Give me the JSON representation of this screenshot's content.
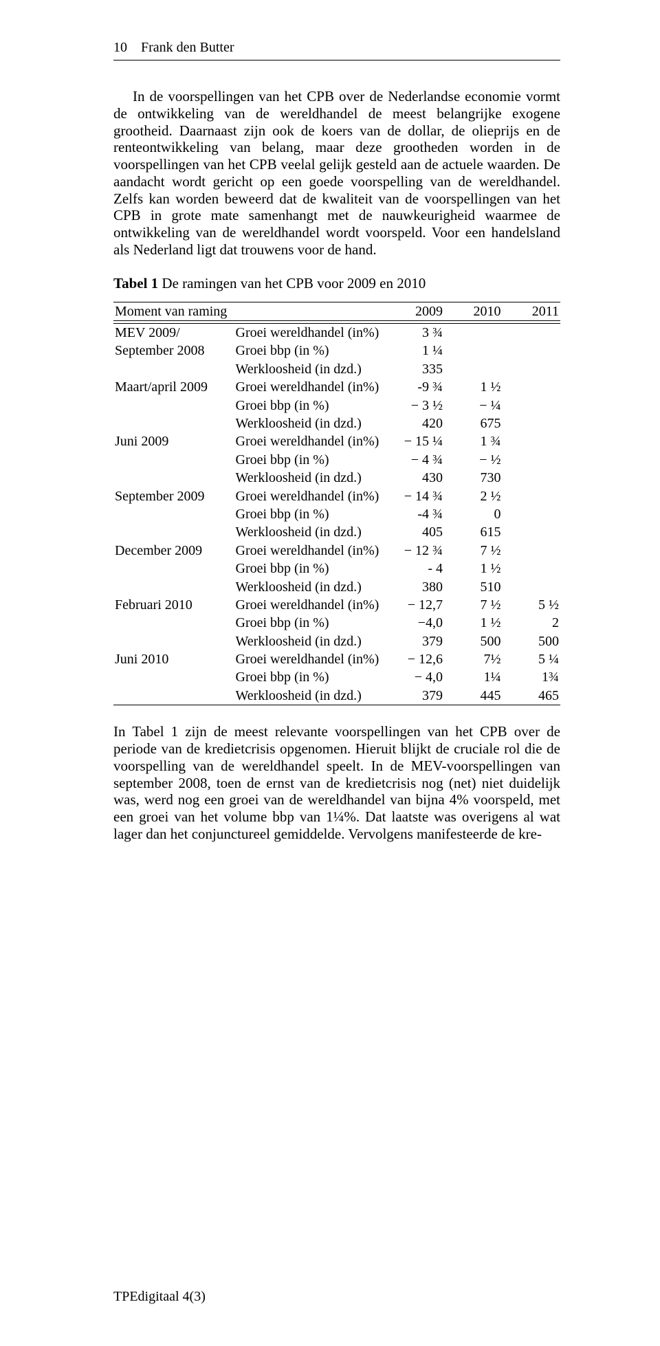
{
  "runningHead": "10 Frank den Butter",
  "para1": "In de voorspellingen van het CPB over de Nederlandse economie vormt de ontwikkeling van de wereldhandel de meest belangrijke exogene grootheid. Daarnaast zijn ook de koers van de dollar, de olieprijs en de renteontwikkeling van belang, maar deze grootheden worden in de voorspellingen van het CPB veelal gelijk gesteld aan de actuele waarden. De aandacht wordt gericht op een goede voorspelling van de wereldhandel. Zelfs kan worden beweerd dat de kwaliteit van de voorspellingen van het CPB in grote mate samenhangt met de nauwkeurigheid waarmee de ontwikkeling van de wereldhandel wordt voorspeld. Voor een handelsland als Nederland ligt dat trouwens voor de hand.",
  "tableCaptionBold": "Tabel 1",
  "tableCaptionRest": " De ramingen van het CPB voor 2009 en 2010",
  "headerRow": {
    "moment": "Moment van raming",
    "y2009": "2009",
    "y2010": "2010",
    "y2011": "2011"
  },
  "blocks": [
    {
      "moment1": "MEV 2009/",
      "moment2": "September 2008",
      "rows": [
        {
          "var": "Groei wereldhandel (in%)",
          "v09": "3 ¾",
          "v10": "",
          "v11": ""
        },
        {
          "var": "Groei bbp (in %)",
          "v09": "1 ¼",
          "v10": "",
          "v11": ""
        },
        {
          "var": "Werkloosheid (in dzd.)",
          "v09": "335",
          "v10": "",
          "v11": ""
        }
      ]
    },
    {
      "moment1": "Maart/april 2009",
      "moment2": "",
      "rows": [
        {
          "var": "Groei wereldhandel (in%)",
          "v09": "-9 ¾",
          "v10": "1 ½",
          "v11": ""
        },
        {
          "var": "Groei bbp (in %)",
          "v09": "− 3 ½",
          "v10": "− ¼",
          "v11": ""
        },
        {
          "var": "Werkloosheid (in dzd.)",
          "v09": "420",
          "v10": "675",
          "v11": ""
        }
      ]
    },
    {
      "moment1": "Juni 2009",
      "moment2": "",
      "rows": [
        {
          "var": "Groei wereldhandel (in%)",
          "v09": "− 15 ¼",
          "v10": "1 ¾",
          "v11": ""
        },
        {
          "var": "Groei bbp (in %)",
          "v09": "− 4 ¾",
          "v10": "− ½",
          "v11": ""
        },
        {
          "var": "Werkloosheid (in dzd.)",
          "v09": "430",
          "v10": "730",
          "v11": ""
        }
      ]
    },
    {
      "moment1": "September 2009",
      "moment2": "",
      "rows": [
        {
          "var": "Groei wereldhandel (in%)",
          "v09": "− 14 ¾",
          "v10": "2 ½",
          "v11": ""
        },
        {
          "var": "Groei bbp (in %)",
          "v09": "-4 ¾",
          "v10": "0",
          "v11": ""
        },
        {
          "var": "Werkloosheid (in dzd.)",
          "v09": "405",
          "v10": "615",
          "v11": ""
        }
      ]
    },
    {
      "moment1": "December 2009",
      "moment2": "",
      "rows": [
        {
          "var": "Groei wereldhandel (in%)",
          "v09": "− 12 ¾",
          "v10": "7 ½",
          "v11": ""
        },
        {
          "var": "Groei bbp (in %)",
          "v09": "- 4",
          "v10": "1 ½",
          "v11": ""
        },
        {
          "var": "Werkloosheid (in dzd.)",
          "v09": "380",
          "v10": "510",
          "v11": ""
        }
      ]
    },
    {
      "moment1": "Februari 2010",
      "moment2": "",
      "rows": [
        {
          "var": "Groei wereldhandel (in%)",
          "v09": "− 12,7",
          "v10": "7 ½",
          "v11": "5 ½"
        },
        {
          "var": "Groei bbp (in %)",
          "v09": "−4,0",
          "v10": "1 ½",
          "v11": "2"
        },
        {
          "var": "Werkloosheid (in dzd.)",
          "v09": "379",
          "v10": "500",
          "v11": "500"
        }
      ]
    },
    {
      "moment1": "Juni 2010",
      "moment2": "",
      "rows": [
        {
          "var": "Groei wereldhandel (in%)",
          "v09": "− 12,6",
          "v10": "7½",
          "v11": "5 ¼"
        },
        {
          "var": "Groei bbp (in %)",
          "v09": "− 4,0",
          "v10": "1¼",
          "v11": "1¾"
        },
        {
          "var": "Werkloosheid (in dzd.)",
          "v09": "379",
          "v10": "445",
          "v11": "465"
        }
      ]
    }
  ],
  "para2": "In Tabel 1 zijn de meest relevante voorspellingen van het CPB over de periode van de kredietcrisis opgenomen. Hieruit blijkt de cruciale rol die de voorspelling van de wereldhandel speelt. In de MEV-voorspellingen van september 2008, toen de ernst van de kredietcrisis nog (net) niet duidelijk was, werd nog een groei van de wereldhandel van bijna 4% voorspeld, met een groei van het volume bbp van 1¼%. Dat laatste was overigens al wat lager dan het conjunctureel gemiddelde. Vervolgens manifesteerde de kre-",
  "footer": "TPEdigitaal 4(3)"
}
